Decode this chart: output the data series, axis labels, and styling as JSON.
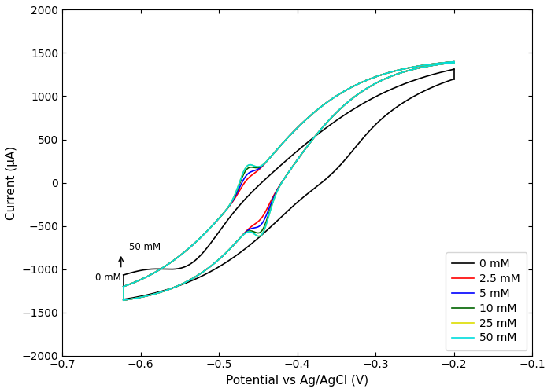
{
  "title": "",
  "xlabel": "Potential vs Ag/AgCl (V)",
  "ylabel": "Current (μA)",
  "xlim": [
    -0.7,
    -0.1
  ],
  "ylim": [
    -2000,
    2000
  ],
  "xticks": [
    -0.7,
    -0.6,
    -0.5,
    -0.4,
    -0.3,
    -0.2,
    -0.1
  ],
  "yticks": [
    -2000,
    -1500,
    -1000,
    -500,
    0,
    500,
    1000,
    1500,
    2000
  ],
  "curves": [
    {
      "label": "0 mM",
      "color": "#000000",
      "conc": 0
    },
    {
      "label": "2.5 mM",
      "color": "#ff0000",
      "conc": 2.5
    },
    {
      "label": "5 mM",
      "color": "#0000ff",
      "conc": 5
    },
    {
      "label": "10 mM",
      "color": "#006400",
      "conc": 10
    },
    {
      "label": "25 mM",
      "color": "#dddd00",
      "conc": 25
    },
    {
      "label": "50 mM",
      "color": "#00dddd",
      "conc": 50
    }
  ],
  "figsize": [
    7.0,
    4.99
  ],
  "dpi": 100
}
